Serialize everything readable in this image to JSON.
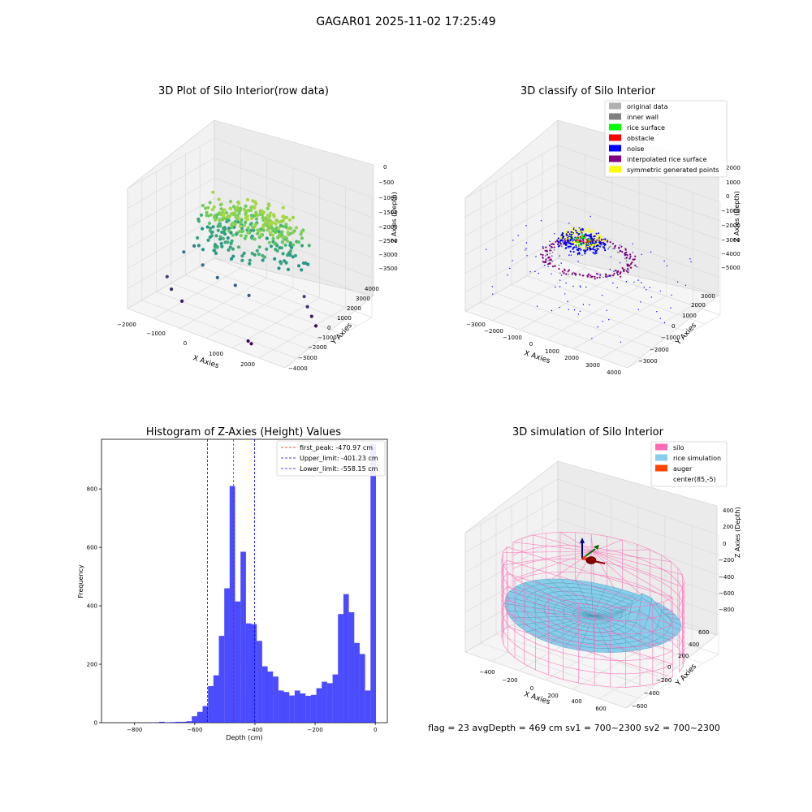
{
  "suptitle": "GAGAR01 2025-11-02 17:25:49",
  "status_line": "flag = 23  avgDepth = 469 cm  sv1 = 700~2300  sv2 = 700~2300",
  "chart_data": [
    {
      "type": "scatter",
      "projection": "3d",
      "title": "3D Plot of Silo Interior(row data)",
      "xlabel": "X Axies",
      "ylabel": "Y Axies",
      "zlabel": "Z Axies (Depth)",
      "x_ticks": [
        "−2000",
        "−1000",
        "0",
        "1000",
        "2000"
      ],
      "y_ticks": [
        "−4000",
        "−3000",
        "−2000",
        "−1000",
        "0",
        "1000",
        "2000",
        "3000",
        "4000"
      ],
      "z_ticks": [
        "0",
        "−500",
        "−1000",
        "−1500",
        "−2000",
        "−2500",
        "−3000",
        "−3500"
      ],
      "xlim": [
        -2200,
        2800
      ],
      "ylim": [
        -4200,
        4200
      ],
      "zlim": [
        -3800,
        200
      ],
      "colormap": "viridis",
      "points": [
        {
          "x": 200,
          "y": 0,
          "z": -600
        },
        {
          "x": 500,
          "y": 200,
          "z": -500
        },
        {
          "x": 800,
          "y": 300,
          "z": -550
        },
        {
          "x": -300,
          "y": 500,
          "z": -700
        },
        {
          "x": 1000,
          "y": -200,
          "z": -650
        },
        {
          "x": -500,
          "y": -500,
          "z": -1100
        },
        {
          "x": 0,
          "y": -300,
          "z": -1200
        },
        {
          "x": 500,
          "y": -400,
          "z": -1150
        },
        {
          "x": 1000,
          "y": -500,
          "z": -1300
        },
        {
          "x": 1500,
          "y": 0,
          "z": -1400
        },
        {
          "x": -800,
          "y": 0,
          "z": -1000
        },
        {
          "x": 0,
          "y": 500,
          "z": -1000
        },
        {
          "x": 1200,
          "y": 1200,
          "z": -1350
        },
        {
          "x": -1000,
          "y": 300,
          "z": -1800
        },
        {
          "x": -1200,
          "y": -800,
          "z": -2000
        },
        {
          "x": -1300,
          "y": -1500,
          "z": -2100
        },
        {
          "x": -600,
          "y": -1800,
          "z": -2200
        },
        {
          "x": 0,
          "y": -2200,
          "z": -2300
        },
        {
          "x": 500,
          "y": -2000,
          "z": -2400
        },
        {
          "x": 1000,
          "y": -2200,
          "z": -2500
        },
        {
          "x": -1500,
          "y": -2500,
          "z": -2800
        },
        {
          "x": -1200,
          "y": -3000,
          "z": -3000
        },
        {
          "x": -800,
          "y": -3200,
          "z": -3200
        },
        {
          "x": 1800,
          "y": 700,
          "z": -2800
        },
        {
          "x": 2000,
          "y": 400,
          "z": -3000
        },
        {
          "x": 2200,
          "y": 200,
          "z": -3200
        },
        {
          "x": 2400,
          "y": 0,
          "z": -3400
        },
        {
          "x": 1400,
          "y": -3500,
          "z": -3600
        },
        {
          "x": 1600,
          "y": -3800,
          "z": -3550
        }
      ]
    },
    {
      "type": "scatter",
      "projection": "3d",
      "title": "3D classify of Silo Interior",
      "xlabel": "X Axies",
      "ylabel": "Y Axies",
      "zlabel": "Z Axies (Depth)",
      "x_ticks": [
        "−3000",
        "−2000",
        "−1000",
        "0",
        "1000",
        "2000",
        "3000",
        "4000"
      ],
      "y_ticks": [
        "−3000",
        "−2000",
        "−1000",
        "0",
        "1000",
        "2000",
        "3000"
      ],
      "z_ticks": [
        "2000",
        "1000",
        "0",
        "−1000",
        "−2000",
        "−3000",
        "−4000",
        "−5000"
      ],
      "xlim": [
        -3300,
        4300
      ],
      "ylim": [
        -3400,
        3400
      ],
      "zlim": [
        -5300,
        2300
      ],
      "legend_position": "top-right",
      "legend": [
        {
          "label": "original data",
          "color": "#b0b0b0"
        },
        {
          "label": "inner wall",
          "color": "#808080"
        },
        {
          "label": "rice surface",
          "color": "#00ff00"
        },
        {
          "label": "obstacle",
          "color": "#ff0000"
        },
        {
          "label": "noise",
          "color": "#0000ff"
        },
        {
          "label": "interpolated rice surface",
          "color": "#800080"
        },
        {
          "label": "symmetric generated points",
          "color": "#ffff00"
        }
      ]
    },
    {
      "type": "bar",
      "title": "Histogram of Z-Axies (Height) Values",
      "xlabel": "Depth (cm)",
      "ylabel": "Frequency",
      "xlim": [
        -910,
        40
      ],
      "ylim": [
        0,
        970
      ],
      "x_ticks": [
        -800,
        -600,
        -400,
        -200,
        0
      ],
      "x_tick_labels": [
        "−800",
        "−600",
        "−400",
        "−200",
        "0"
      ],
      "y_ticks": [
        0,
        200,
        400,
        600,
        800
      ],
      "bar_color": "#0000ff",
      "bins": [
        {
          "x0": -880,
          "x1": -862,
          "count": 0
        },
        {
          "x0": -862,
          "x1": -844,
          "count": 0
        },
        {
          "x0": -844,
          "x1": -826,
          "count": 0
        },
        {
          "x0": -826,
          "x1": -808,
          "count": 0
        },
        {
          "x0": -808,
          "x1": -790,
          "count": 0
        },
        {
          "x0": -790,
          "x1": -772,
          "count": 0
        },
        {
          "x0": -772,
          "x1": -754,
          "count": 0
        },
        {
          "x0": -754,
          "x1": -736,
          "count": 0
        },
        {
          "x0": -736,
          "x1": -718,
          "count": 1
        },
        {
          "x0": -718,
          "x1": -700,
          "count": 3
        },
        {
          "x0": -700,
          "x1": -682,
          "count": 1
        },
        {
          "x0": -682,
          "x1": -664,
          "count": 2
        },
        {
          "x0": -664,
          "x1": -646,
          "count": 3
        },
        {
          "x0": -646,
          "x1": -628,
          "count": 3
        },
        {
          "x0": -628,
          "x1": -610,
          "count": 5
        },
        {
          "x0": -610,
          "x1": -592,
          "count": 22
        },
        {
          "x0": -592,
          "x1": -574,
          "count": 37
        },
        {
          "x0": -574,
          "x1": -556,
          "count": 57
        },
        {
          "x0": -556,
          "x1": -538,
          "count": 125
        },
        {
          "x0": -538,
          "x1": -520,
          "count": 162
        },
        {
          "x0": -520,
          "x1": -502,
          "count": 297
        },
        {
          "x0": -502,
          "x1": -484,
          "count": 460
        },
        {
          "x0": -484,
          "x1": -466,
          "count": 810
        },
        {
          "x0": -466,
          "x1": -448,
          "count": 415
        },
        {
          "x0": -448,
          "x1": -430,
          "count": 585
        },
        {
          "x0": -430,
          "x1": -412,
          "count": 340
        },
        {
          "x0": -412,
          "x1": -394,
          "count": 337
        },
        {
          "x0": -394,
          "x1": -376,
          "count": 280
        },
        {
          "x0": -376,
          "x1": -358,
          "count": 193
        },
        {
          "x0": -358,
          "x1": -340,
          "count": 175
        },
        {
          "x0": -340,
          "x1": -322,
          "count": 158
        },
        {
          "x0": -322,
          "x1": -304,
          "count": 110
        },
        {
          "x0": -304,
          "x1": -286,
          "count": 105
        },
        {
          "x0": -286,
          "x1": -268,
          "count": 93
        },
        {
          "x0": -268,
          "x1": -250,
          "count": 110
        },
        {
          "x0": -250,
          "x1": -232,
          "count": 100
        },
        {
          "x0": -232,
          "x1": -214,
          "count": 92
        },
        {
          "x0": -214,
          "x1": -196,
          "count": 95
        },
        {
          "x0": -196,
          "x1": -178,
          "count": 118
        },
        {
          "x0": -178,
          "x1": -160,
          "count": 140
        },
        {
          "x0": -160,
          "x1": -142,
          "count": 135
        },
        {
          "x0": -142,
          "x1": -124,
          "count": 165
        },
        {
          "x0": -124,
          "x1": -106,
          "count": 372
        },
        {
          "x0": -106,
          "x1": -88,
          "count": 440
        },
        {
          "x0": -88,
          "x1": -70,
          "count": 378
        },
        {
          "x0": -70,
          "x1": -52,
          "count": 273
        },
        {
          "x0": -52,
          "x1": -34,
          "count": 235
        },
        {
          "x0": -34,
          "x1": -16,
          "count": 110
        },
        {
          "x0": -16,
          "x1": 2,
          "count": 955
        }
      ],
      "vlines": [
        {
          "label": "first_peak: -470.97 cm",
          "x": -470.97,
          "color": "#ff0000"
        },
        {
          "label": "Upper_limit: -401.23 cm",
          "x": -401.23,
          "color": "#0000ff"
        },
        {
          "label": "Lower_limit: -558.15 cm",
          "x": -558.15,
          "color": "#0000ff"
        }
      ],
      "legend_position": "top-right"
    },
    {
      "type": "surface",
      "projection": "3d",
      "title": "3D simulation of Silo Interior",
      "xlabel": "X Axies",
      "ylabel": "Y Axies",
      "zlabel": "Z Axies (Depth)",
      "x_ticks": [
        "−400",
        "−200",
        "0",
        "200",
        "400",
        "600"
      ],
      "y_ticks": [
        "−600",
        "−400",
        "−200",
        "0",
        "200",
        "400",
        "600"
      ],
      "z_ticks": [
        "400",
        "200",
        "0",
        "−200",
        "−400",
        "−600",
        "−800"
      ],
      "xlim": [
        -550,
        700
      ],
      "ylim": [
        -650,
        650
      ],
      "zlim": [
        -900,
        450
      ],
      "legend_position": "top-right",
      "legend": [
        {
          "label": "silo",
          "color": "#ff69b4"
        },
        {
          "label": "rice simulation",
          "color": "#87ceeb"
        },
        {
          "label": "auger",
          "color": "#ff4500"
        },
        {
          "label": "center(85,-5)",
          "color": "#ffffff"
        }
      ]
    }
  ]
}
